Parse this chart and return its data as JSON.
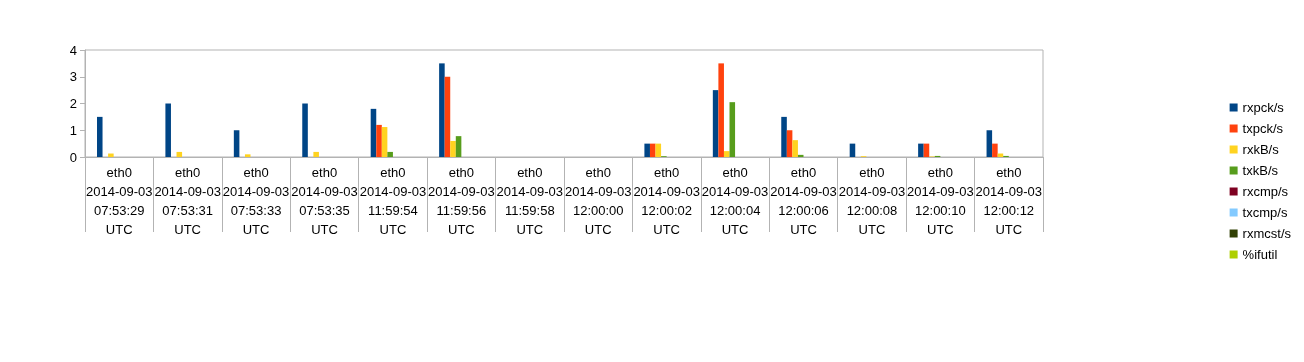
{
  "chart_data": {
    "type": "bar",
    "categories": [
      "eth0\n2014-09-03\n07:53:29\nUTC",
      "eth0\n2014-09-03\n07:53:31\nUTC",
      "eth0\n2014-09-03\n07:53:33\nUTC",
      "eth0\n2014-09-03\n07:53:35\nUTC",
      "eth0\n2014-09-03\n11:59:54\nUTC",
      "eth0\n2014-09-03\n11:59:56\nUTC",
      "eth0\n2014-09-03\n11:59:58\nUTC",
      "eth0\n2014-09-03\n12:00:00\nUTC",
      "eth0\n2014-09-03\n12:00:02\nUTC",
      "eth0\n2014-09-03\n12:00:04\nUTC",
      "eth0\n2014-09-03\n12:00:06\nUTC",
      "eth0\n2014-09-03\n12:00:08\nUTC",
      "eth0\n2014-09-03\n12:00:10\nUTC",
      "eth0\n2014-09-03\n12:00:12\nUTC"
    ],
    "series": [
      {
        "name": "rxpck/s",
        "color": "#004586",
        "values": [
          1.5,
          2,
          1,
          2,
          1.8,
          3.5,
          0,
          0,
          0.5,
          2.5,
          1.5,
          0.5,
          0.5,
          1
        ]
      },
      {
        "name": "txpck/s",
        "color": "#ff420e",
        "values": [
          0,
          0,
          0,
          0,
          1.2,
          3,
          0,
          0,
          0.5,
          3.5,
          1,
          0,
          0.5,
          0.5
        ]
      },
      {
        "name": "rxkB/s",
        "color": "#ffd320",
        "values": [
          0.13,
          0.19,
          0.1,
          0.19,
          1.12,
          0.6,
          0,
          0,
          0.5,
          0.22,
          0.63,
          0.03,
          0.02,
          0.13
        ]
      },
      {
        "name": "txkB/s",
        "color": "#579d1c",
        "values": [
          0,
          0,
          0,
          0,
          0.19,
          0.78,
          0,
          0,
          0.03,
          2.05,
          0.08,
          0,
          0.04,
          0.04
        ]
      },
      {
        "name": "rxcmp/s",
        "color": "#7e0021",
        "values": [
          0,
          0,
          0,
          0,
          0,
          0,
          0,
          0,
          0,
          0,
          0,
          0,
          0,
          0
        ]
      },
      {
        "name": "txcmp/s",
        "color": "#83caff",
        "values": [
          0,
          0,
          0,
          0,
          0,
          0,
          0,
          0,
          0,
          0,
          0,
          0,
          0,
          0
        ]
      },
      {
        "name": "rxmcst/s",
        "color": "#314004",
        "values": [
          0,
          0,
          0,
          0,
          0,
          0,
          0,
          0,
          0,
          0,
          0,
          0,
          0,
          0
        ]
      },
      {
        "name": "%ifutil",
        "color": "#aecf00",
        "values": [
          0,
          0,
          0,
          0,
          0,
          0,
          0,
          0,
          0,
          0,
          0,
          0,
          0,
          0
        ]
      }
    ],
    "ylim": [
      0,
      4
    ],
    "yticks": [
      0,
      1,
      2,
      3,
      4
    ],
    "grid": false,
    "legend": "right"
  }
}
